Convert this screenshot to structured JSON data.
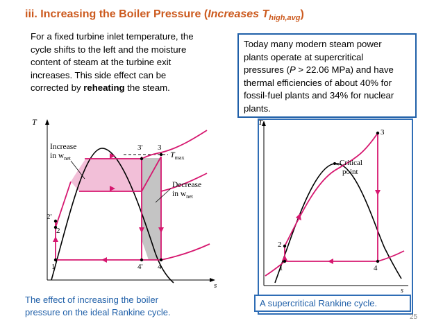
{
  "title": {
    "prefix": "iii. Increasing the Boiler Pressure (",
    "italic": "Increases T",
    "sub": "high,avg",
    "suffix": ")"
  },
  "left_paragraph": {
    "before": "For a fixed turbine inlet temperature, the cycle shifts to the left and the moisture content of steam at the turbine exit increases. This side effect can be corrected by ",
    "bold": "reheating",
    "after": " the steam."
  },
  "callout": {
    "l1": "Today many modern steam power",
    "l2": "plants operate at supercritical",
    "l3a": "pressures (",
    "l3b": "P",
    "l3c": " > 22.06 MPa) and have",
    "l4": "thermal efficiencies of about 40% for",
    "l5": "fossil-fuel plants and 34% for nuclear",
    "l6": "plants."
  },
  "left_diagram": {
    "t_axis": "T",
    "s_axis": "s",
    "inc1": "Increase",
    "inc2": "in w",
    "inc_sub": "net",
    "dec1": "Decrease",
    "dec2": "in w",
    "dec_sub": "net",
    "tmax": "T",
    "tmax_sub": "max",
    "p1": "1",
    "p2": "2",
    "p2p": "2'",
    "p3": "3",
    "p3p": "3'",
    "p4": "4",
    "p4p": "4'"
  },
  "right_diagram": {
    "t_axis": "T",
    "s_axis": "s",
    "critical1": "Critical",
    "critical2": "point",
    "p1": "1",
    "p2": "2",
    "p3": "3",
    "p4": "4"
  },
  "left_caption": {
    "l1": "The effect of increasing the boiler",
    "l2": "pressure on the ideal Rankine cycle."
  },
  "right_caption": "A supercritical Rankine cycle.",
  "page_number": "25",
  "colors": {
    "title": "#cc5a1e",
    "caption": "#1f5fa8",
    "cycle": "#d6176f",
    "fill_pink": "#f2bfd8",
    "fill_gray": "#c4c4c4",
    "box_border": "#2f6db5"
  }
}
